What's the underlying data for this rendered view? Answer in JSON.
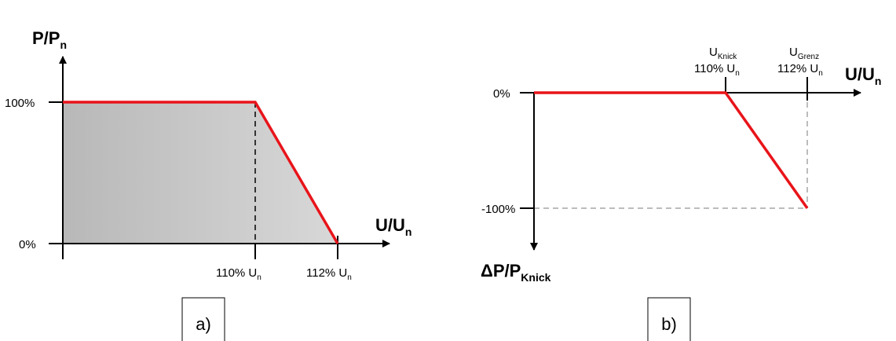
{
  "panel_a": {
    "y_axis_label": "P/P",
    "y_axis_label_sub": "n",
    "x_axis_label": "U/U",
    "x_axis_label_sub": "n",
    "y_ticks": [
      "100%",
      "0%"
    ],
    "x_tick_1": "110% U",
    "x_tick_1_sub": "n",
    "x_tick_2": "112% U",
    "x_tick_2_sub": "n",
    "panel_label": "a)"
  },
  "panel_b": {
    "y_axis_label": "ΔP/P",
    "y_axis_label_sub": "Knick",
    "x_axis_label": "U/U",
    "x_axis_label_sub": "n",
    "y_ticks": [
      "0%",
      "-100%"
    ],
    "knick_label": "U",
    "knick_label_sub": "Knick",
    "knick_value": "110% U",
    "knick_value_sub": "n",
    "grenz_label": "U",
    "grenz_label_sub": "Grenz",
    "grenz_value": "112% U",
    "grenz_value_sub": "n",
    "panel_label": "b)"
  },
  "colors": {
    "curve": "#e8141a",
    "fill_dark": "#b9b9b9",
    "fill_light": "#d6d6d6",
    "dashed_grey": "#a6a6a6"
  },
  "curve_points_a": [
    [
      1.0,
      100
    ],
    [
      1.1,
      100
    ],
    [
      1.12,
      0
    ]
  ],
  "curve_points_b": [
    [
      1.0,
      0
    ],
    [
      1.1,
      0
    ],
    [
      1.12,
      -100
    ]
  ]
}
